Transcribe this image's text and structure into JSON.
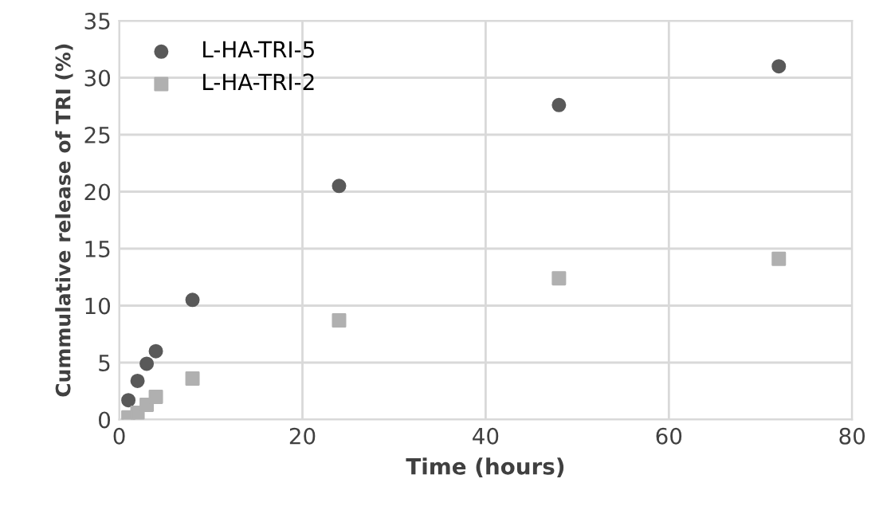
{
  "chart_data": {
    "type": "scatter",
    "xlabel": "Time (hours)",
    "ylabel": "Cummulative release of TRI (%)",
    "x": [
      1,
      2,
      3,
      4,
      8,
      24,
      48,
      72
    ],
    "series": [
      {
        "name": "L-HA-TRI-5",
        "color": "#595959",
        "marker": "circle",
        "values": [
          1.7,
          3.4,
          4.9,
          6.0,
          10.5,
          20.5,
          27.6,
          31.0
        ]
      },
      {
        "name": "L-HA-TRI-2",
        "color": "#b0b0b0",
        "marker": "square",
        "values": [
          0.2,
          0.6,
          1.3,
          2.0,
          3.6,
          8.7,
          12.4,
          14.1
        ]
      }
    ],
    "xlim": [
      0,
      80
    ],
    "xticks": [
      0,
      20,
      40,
      60,
      80
    ],
    "ylim": [
      0,
      35
    ],
    "yticks": [
      0,
      5,
      10,
      15,
      20,
      25,
      30,
      35
    ],
    "grid": true,
    "legend": "top left"
  }
}
